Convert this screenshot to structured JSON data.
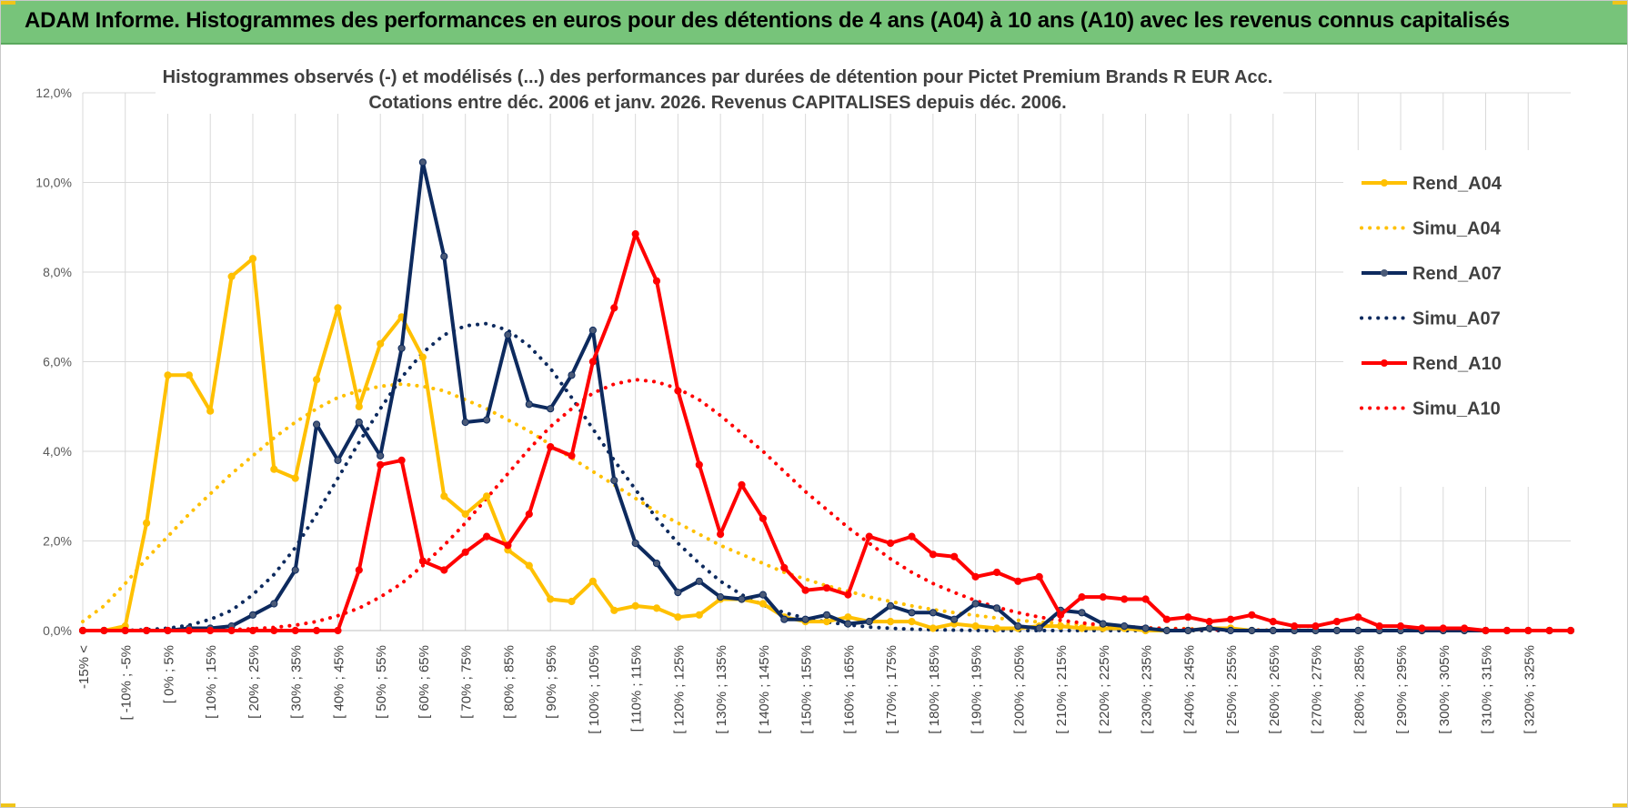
{
  "header": {
    "title": "ADAM Informe. Histogrammes des performances en euros pour des détentions de 4 ans (A04) à 10 ans (A10) avec les revenus connus capitalisés"
  },
  "colors": {
    "header_bg": "#77c47a",
    "A04": "#FFC000",
    "A07": "#0D2A5E",
    "A10": "#FF0000",
    "grid": "#d9d9d9"
  },
  "chart_data": {
    "type": "line",
    "title": "Histogrammes observés (-) et modélisés (...) des performances par durées de détention pour Pictet Premium Brands R EUR Acc.",
    "subtitle": "Cotations entre déc. 2006 et janv. 2026. Revenus CAPITALISES depuis déc. 2006.",
    "ylim": [
      0,
      12
    ],
    "y_ticks": [
      "0,0%",
      "2,0%",
      "4,0%",
      "6,0%",
      "8,0%",
      "10,0%",
      "12,0%"
    ],
    "y_unit": "%",
    "legend_position": "right",
    "x_labels": [
      "-15% <",
      "[ -10% ; -5%",
      "[ 0% ; 5%",
      "[ 10% ; 15%",
      "[ 20% ; 25%",
      "[ 30% ; 35%",
      "[ 40% ; 45%",
      "[ 50% ; 55%",
      "[ 60% ; 65%",
      "[ 70% ; 75%",
      "[ 80% ; 85%",
      "[ 90% ; 95%",
      "[ 100% ; 105%",
      "[ 110% ; 115%",
      "[ 120% ; 125%",
      "[ 130% ; 135%",
      "[ 140% ; 145%",
      "[ 150% ; 155%",
      "[ 160% ; 165%",
      "[ 170% ; 175%",
      "[ 180% ; 185%",
      "[ 190% ; 195%",
      "[ 200% ; 205%",
      "[ 210% ; 215%",
      "[ 220% ; 225%",
      "[ 230% ; 235%",
      "[ 240% ; 245%",
      "[ 250% ; 255%",
      "[ 260% ; 265%",
      "[ 270% ; 275%",
      "[ 280% ; 285%",
      "[ 290% ; 295%",
      "[ 300% ; 305%",
      "[ 310% ; 315%",
      "[ 320% ; 325%"
    ],
    "series": [
      {
        "name": "Rend_A04",
        "color": "#FFC000",
        "style": "solid",
        "values": [
          0,
          0,
          0.1,
          2.4,
          5.7,
          5.7,
          4.9,
          7.9,
          8.3,
          3.6,
          3.4,
          5.6,
          7.2,
          5.0,
          6.4,
          7.0,
          6.1,
          3.0,
          2.6,
          3.0,
          1.8,
          1.45,
          0.7,
          0.65,
          1.1,
          0.45,
          0.55,
          0.5,
          0.3,
          0.35,
          0.7,
          0.7,
          0.6,
          0.3,
          0.2,
          0.2,
          0.3,
          0.2,
          0.2,
          0.2,
          0.05,
          0.15,
          0.1,
          0.05,
          0.05,
          0.1,
          0.1,
          0.05,
          0.05,
          0.05,
          0,
          0,
          0,
          0.05,
          0.05,
          0,
          0,
          0,
          0,
          0,
          0,
          0,
          0,
          0,
          0,
          0,
          0,
          0,
          0,
          0,
          0
        ]
      },
      {
        "name": "Simu_A04",
        "color": "#FFC000",
        "style": "dotted",
        "values": [
          0.2,
          0.55,
          1.05,
          1.6,
          2.1,
          2.6,
          3.05,
          3.5,
          3.9,
          4.3,
          4.65,
          4.95,
          5.2,
          5.35,
          5.45,
          5.5,
          5.45,
          5.35,
          5.15,
          4.95,
          4.7,
          4.45,
          4.15,
          3.85,
          3.55,
          3.25,
          2.95,
          2.65,
          2.4,
          2.15,
          1.9,
          1.7,
          1.5,
          1.3,
          1.15,
          1.0,
          0.88,
          0.75,
          0.65,
          0.55,
          0.47,
          0.4,
          0.34,
          0.28,
          0.23,
          0.19,
          0.16,
          0.13,
          0.1,
          0.08,
          0.06,
          0.05,
          0.04,
          0.03,
          0.02,
          0.015,
          0.01,
          0.01,
          0.005,
          0,
          0,
          0,
          0,
          0,
          0,
          0,
          0,
          0,
          0,
          0,
          0
        ]
      },
      {
        "name": "Rend_A07",
        "color": "#0D2A5E",
        "style": "solid",
        "values": [
          0,
          0,
          0,
          0,
          0,
          0.05,
          0.05,
          0.1,
          0.35,
          0.6,
          1.35,
          4.6,
          3.8,
          4.65,
          3.9,
          6.3,
          10.45,
          8.35,
          4.65,
          4.7,
          6.6,
          5.05,
          4.95,
          5.7,
          6.7,
          3.35,
          1.95,
          1.5,
          0.85,
          1.1,
          0.75,
          0.7,
          0.8,
          0.25,
          0.25,
          0.35,
          0.15,
          0.2,
          0.55,
          0.4,
          0.4,
          0.25,
          0.6,
          0.5,
          0.1,
          0.05,
          0.45,
          0.4,
          0.15,
          0.1,
          0.05,
          0,
          0,
          0.05,
          0,
          0,
          0,
          0,
          0,
          0,
          0,
          0,
          0,
          0,
          0,
          0,
          0,
          0,
          0,
          0,
          0
        ]
      },
      {
        "name": "Simu_A07",
        "color": "#0D2A5E",
        "style": "dotted",
        "values": [
          0,
          0,
          0,
          0.02,
          0.05,
          0.12,
          0.25,
          0.45,
          0.8,
          1.25,
          1.85,
          2.6,
          3.4,
          4.2,
          4.95,
          5.65,
          6.2,
          6.6,
          6.8,
          6.85,
          6.7,
          6.35,
          5.85,
          5.2,
          4.5,
          3.8,
          3.15,
          2.5,
          1.95,
          1.5,
          1.1,
          0.8,
          0.57,
          0.4,
          0.28,
          0.19,
          0.13,
          0.08,
          0.05,
          0.03,
          0.02,
          0.01,
          0.005,
          0,
          0,
          0,
          0,
          0,
          0,
          0,
          0,
          0,
          0,
          0,
          0,
          0,
          0,
          0,
          0,
          0,
          0,
          0,
          0,
          0,
          0,
          0,
          0,
          0,
          0,
          0,
          0
        ]
      },
      {
        "name": "Rend_A10",
        "color": "#FF0000",
        "style": "solid",
        "values": [
          0,
          0,
          0,
          0,
          0,
          0,
          0,
          0,
          0,
          0,
          0,
          0,
          0,
          1.35,
          3.7,
          3.8,
          1.55,
          1.35,
          1.75,
          2.1,
          1.9,
          2.6,
          4.1,
          3.9,
          6.0,
          7.2,
          8.85,
          7.8,
          5.35,
          3.7,
          2.15,
          3.25,
          2.5,
          1.4,
          0.9,
          0.95,
          0.8,
          2.1,
          1.95,
          2.1,
          1.7,
          1.65,
          1.2,
          1.3,
          1.1,
          1.2,
          0.35,
          0.75,
          0.75,
          0.7,
          0.7,
          0.25,
          0.3,
          0.2,
          0.25,
          0.35,
          0.2,
          0.1,
          0.1,
          0.2,
          0.3,
          0.1,
          0.1,
          0.05,
          0.05,
          0.05,
          0,
          0,
          0,
          0,
          0
        ]
      },
      {
        "name": "Simu_A10",
        "color": "#FF0000",
        "style": "dotted",
        "values": [
          0,
          0,
          0,
          0,
          0,
          0,
          0.01,
          0.02,
          0.04,
          0.07,
          0.12,
          0.2,
          0.33,
          0.5,
          0.75,
          1.05,
          1.45,
          1.9,
          2.4,
          2.95,
          3.5,
          4.05,
          4.55,
          4.95,
          5.3,
          5.5,
          5.6,
          5.55,
          5.4,
          5.15,
          4.8,
          4.4,
          4.0,
          3.55,
          3.1,
          2.7,
          2.3,
          1.95,
          1.6,
          1.3,
          1.05,
          0.85,
          0.67,
          0.52,
          0.4,
          0.3,
          0.23,
          0.17,
          0.12,
          0.09,
          0.06,
          0.045,
          0.03,
          0.02,
          0.015,
          0.01,
          0.005,
          0,
          0,
          0,
          0,
          0,
          0,
          0,
          0,
          0,
          0,
          0,
          0,
          0,
          0
        ]
      }
    ]
  }
}
